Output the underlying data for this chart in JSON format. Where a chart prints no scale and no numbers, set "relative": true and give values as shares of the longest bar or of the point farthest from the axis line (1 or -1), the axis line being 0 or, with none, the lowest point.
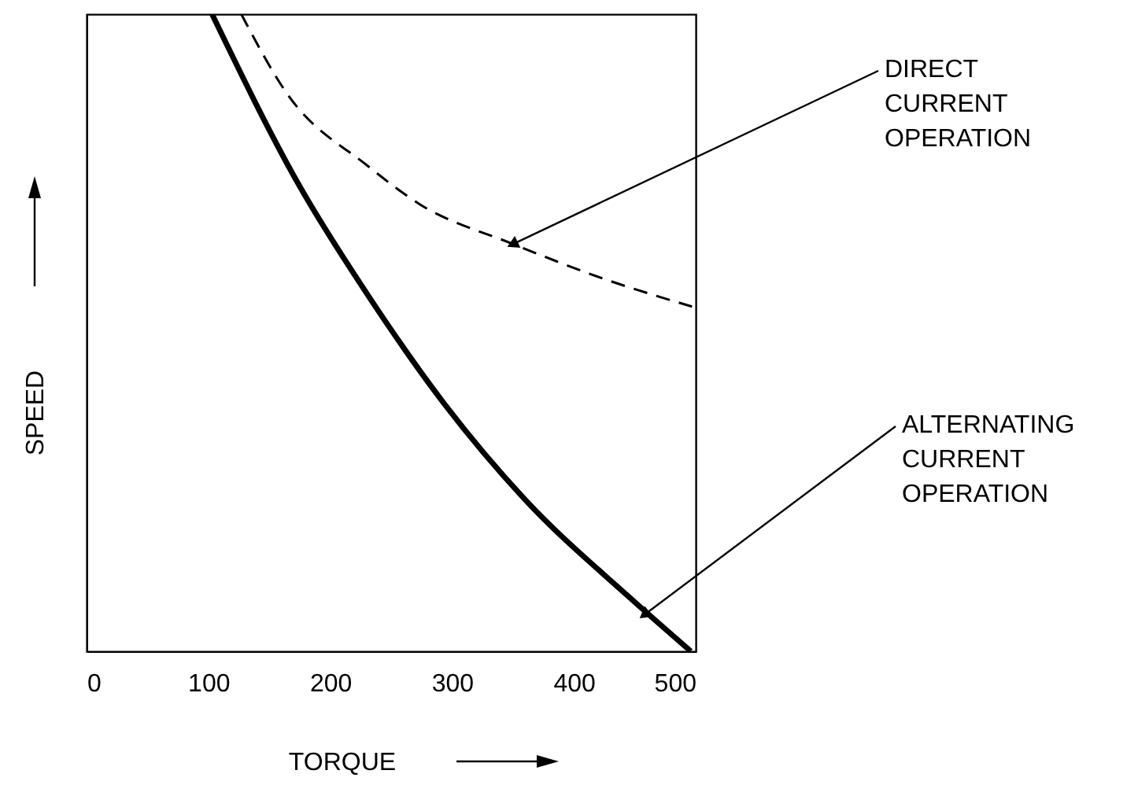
{
  "chart_data": {
    "type": "line",
    "xlabel": "TORQUE",
    "ylabel": "SPEED",
    "relative": true,
    "xlim": [
      0,
      500
    ],
    "xticks": [
      0,
      100,
      200,
      300,
      400,
      500
    ],
    "series": [
      {
        "color": "#000000",
        "line_style": "solid",
        "x": [
          103,
          174,
          233,
          295,
          359,
          446,
          496
        ],
        "values": [
          1.0,
          0.733,
          0.553,
          0.385,
          0.24,
          0.084,
          0
        ]
      },
      {
        "color": "#000000",
        "line_style": "dashed",
        "x": [
          127,
          165,
          230,
          274,
          349,
          424,
          497
        ],
        "values": [
          1.0,
          0.874,
          0.763,
          0.701,
          0.64,
          0.585,
          0.541
        ]
      }
    ],
    "annotations": [
      {
        "text": "DIRECT\nCURRENT\nOPERATION",
        "x": 351,
        "y": 0.64
      },
      {
        "text": "ALTERNATING\nCURRENT\nOPERATION",
        "x": 459,
        "y": 0.059
      }
    ]
  }
}
